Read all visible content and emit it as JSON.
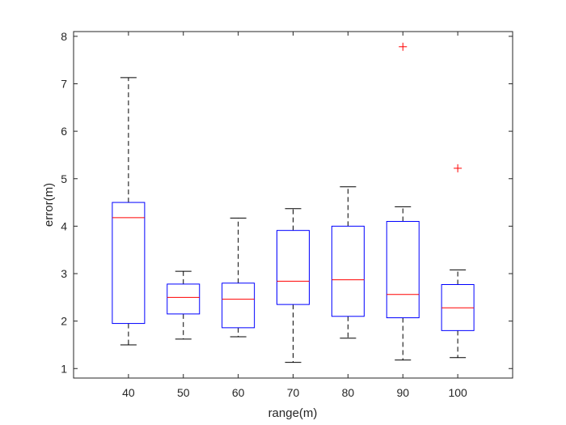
{
  "chart_data": {
    "type": "boxplot",
    "title": "",
    "xlabel": "range(m)",
    "ylabel": "error(m)",
    "categories": [
      "40",
      "50",
      "60",
      "70",
      "80",
      "90",
      "100"
    ],
    "ylim": [
      0.8,
      8.1
    ],
    "yticks": [
      1,
      2,
      3,
      4,
      5,
      6,
      7,
      8
    ],
    "grid": false,
    "boxes": [
      {
        "category": "40",
        "whisker_low": 1.5,
        "q1": 1.95,
        "median": 4.18,
        "q3": 4.5,
        "whisker_high": 7.13,
        "outliers": []
      },
      {
        "category": "50",
        "whisker_low": 1.62,
        "q1": 2.15,
        "median": 2.5,
        "q3": 2.78,
        "whisker_high": 3.05,
        "outliers": []
      },
      {
        "category": "60",
        "whisker_low": 1.67,
        "q1": 1.86,
        "median": 2.46,
        "q3": 2.8,
        "whisker_high": 4.17,
        "outliers": []
      },
      {
        "category": "70",
        "whisker_low": 1.13,
        "q1": 2.35,
        "median": 2.84,
        "q3": 3.91,
        "whisker_high": 4.37,
        "outliers": []
      },
      {
        "category": "80",
        "whisker_low": 1.64,
        "q1": 2.1,
        "median": 2.87,
        "q3": 4.0,
        "whisker_high": 4.83,
        "outliers": []
      },
      {
        "category": "90",
        "whisker_low": 1.18,
        "q1": 2.07,
        "median": 2.56,
        "q3": 4.1,
        "whisker_high": 4.41,
        "outliers": [
          7.78
        ]
      },
      {
        "category": "100",
        "whisker_low": 1.23,
        "q1": 1.8,
        "median": 2.28,
        "q3": 2.77,
        "whisker_high": 3.08,
        "outliers": [
          5.22
        ]
      }
    ],
    "colors": {
      "box": "#0000ff",
      "median": "#ff0000",
      "whisker": "#000000",
      "outlier": "#ff0000",
      "axis": "#262626"
    }
  }
}
